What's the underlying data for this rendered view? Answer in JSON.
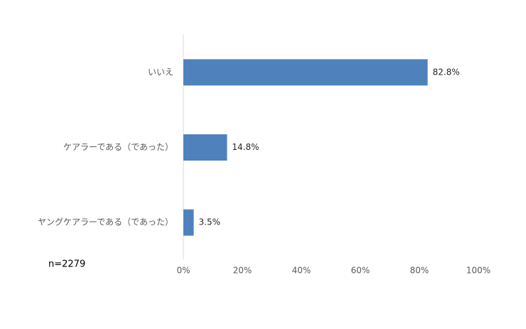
{
  "chart_data": {
    "type": "barh",
    "categories": [
      "いいえ",
      "ケアラーである（であった）",
      "ヤングケアラーである（であった）"
    ],
    "values": [
      82.8,
      14.8,
      3.5
    ],
    "value_labels": [
      "82.8%",
      "14.8%",
      "3.5%"
    ],
    "color": "#4f81bd",
    "xlim": [
      0,
      100
    ],
    "xticks": [
      {
        "value": 0,
        "label": "0%"
      },
      {
        "value": 20,
        "label": "20%"
      },
      {
        "value": 40,
        "label": "40%"
      },
      {
        "value": 60,
        "label": "60%"
      },
      {
        "value": 80,
        "label": "80%"
      },
      {
        "value": 100,
        "label": "100%"
      }
    ],
    "annotation": "n=2279"
  }
}
